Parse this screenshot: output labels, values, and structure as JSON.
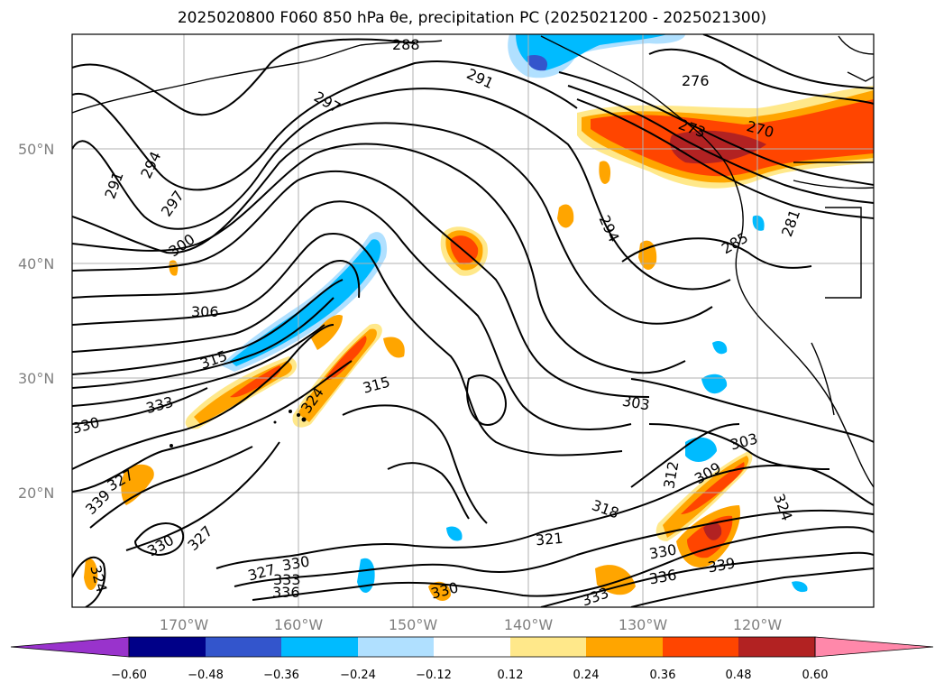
{
  "title": "2025020800 F060 850 hPa θe, precipitation PC (2025021200 - 2025021300)",
  "map": {
    "lat_labels": [
      "50°N",
      "40°N",
      "30°N",
      "20°N"
    ],
    "lon_labels": [
      "170°W",
      "160°W",
      "150°W",
      "140°W",
      "130°W",
      "120°W"
    ],
    "contour_labels": [
      "288",
      "291",
      "297",
      "294",
      "291",
      "297",
      "300",
      "306",
      "315",
      "333",
      "330",
      "327",
      "339",
      "330",
      "327",
      "324",
      "324",
      "315",
      "327",
      "330",
      "333",
      "336",
      "330",
      "294",
      "276",
      "273",
      "270",
      "281",
      "285",
      "303",
      "303",
      "312",
      "309",
      "318",
      "321",
      "330",
      "336",
      "339",
      "333",
      "324"
    ]
  },
  "colorbar": {
    "ticks": [
      "−0.60",
      "−0.48",
      "−0.36",
      "−0.24",
      "−0.12",
      "0.12",
      "0.24",
      "0.36",
      "0.48",
      "0.60"
    ],
    "colors": [
      "#9933cc",
      "#000088",
      "#3355cc",
      "#00bbff",
      "#b0e0ff",
      "#ffffff",
      "#ffe88a",
      "#ffa500",
      "#ff4500",
      "#b22222",
      "#ff88aa"
    ]
  }
}
